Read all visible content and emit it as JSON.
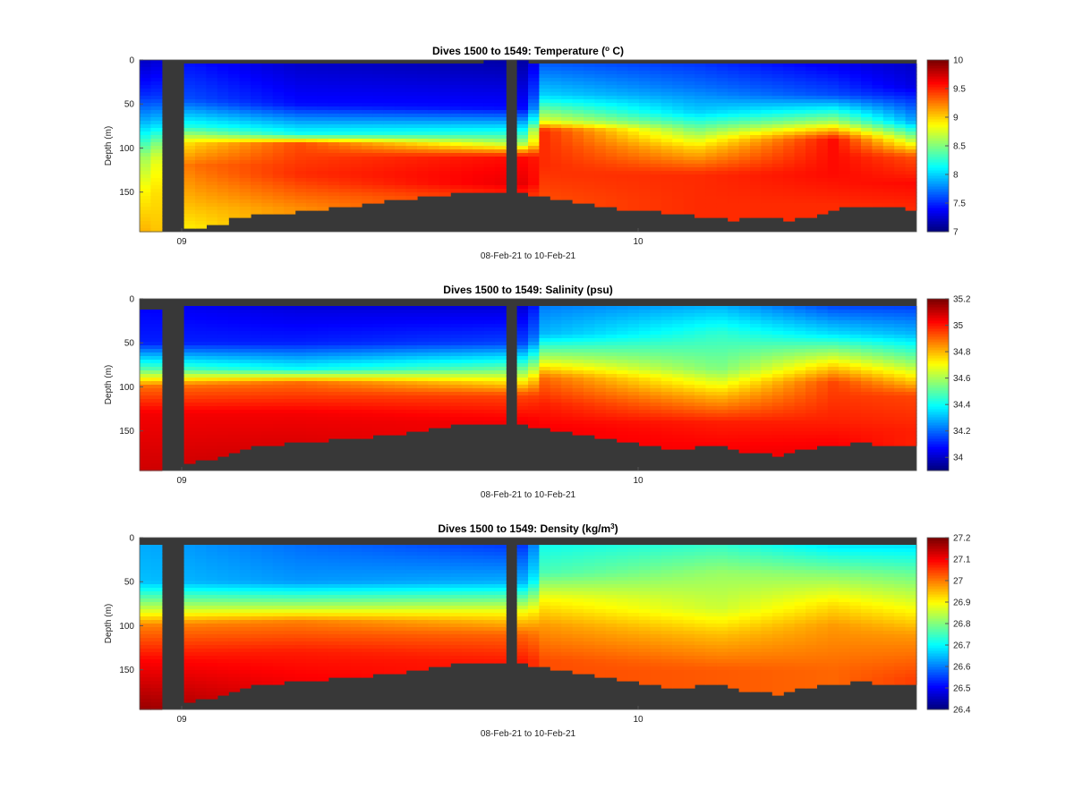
{
  "chart_data": [
    {
      "type": "heatmap",
      "title": "Dives 1500 to 1549: Temperature (",
      "title_sup": "o",
      "title_end": " C)",
      "xlabel": "08-Feb-21 to 10-Feb-21",
      "ylabel": "Depth (m)",
      "x_ticks": [
        "09",
        "10"
      ],
      "y_ticks": [
        0,
        50,
        100,
        150
      ],
      "ylim": [
        0,
        195
      ],
      "colorbar": {
        "min": 7,
        "max": 10,
        "ticks": [
          "7",
          "7.5",
          "8",
          "8.5",
          "9",
          "9.5",
          "10"
        ]
      },
      "bottom_depth": [
        195,
        195,
        0,
        0,
        192,
        190,
        187,
        185,
        180,
        178,
        176,
        175,
        174,
        173,
        171,
        170,
        169,
        168,
        167,
        165,
        163,
        162,
        160,
        158,
        157,
        155,
        154,
        153,
        151,
        150,
        149,
        150,
        152,
        0,
        152,
        154,
        156,
        158,
        160,
        162,
        164,
        166,
        168,
        169,
        170,
        171,
        172,
        173,
        174,
        176,
        177,
        179,
        180,
        181,
        180,
        178,
        179,
        180,
        181,
        180,
        177,
        174,
        171,
        168,
        167,
        166,
        166,
        167,
        168,
        169
      ],
      "surface_depth": [
        2,
        2,
        0,
        0,
        3,
        4,
        3,
        4,
        5,
        5,
        4,
        5,
        3,
        4,
        5,
        4,
        3,
        5,
        4,
        3,
        4,
        5,
        4,
        3,
        5,
        4,
        3,
        4,
        5,
        4,
        3,
        2,
        2,
        0,
        2,
        3,
        4,
        3,
        4,
        3,
        4,
        5,
        3,
        4,
        5,
        3,
        4,
        5,
        3,
        4,
        3,
        5,
        4,
        3,
        4,
        5,
        3,
        4,
        5,
        4,
        3,
        4,
        5,
        3,
        4,
        5,
        4,
        3,
        4,
        5
      ],
      "profiles": [
        {
          "t": 0.0,
          "levels": [
            [
              0,
              7.2
            ],
            [
              40,
              7.5
            ],
            [
              70,
              7.9
            ],
            [
              110,
              8.6
            ],
            [
              150,
              8.9
            ],
            [
              195,
              9.1
            ]
          ]
        },
        {
          "t": 0.06,
          "levels": [
            [
              0,
              7.4
            ],
            [
              45,
              7.6
            ],
            [
              75,
              8.2
            ],
            [
              95,
              9.0
            ],
            [
              120,
              9.3
            ],
            [
              160,
              9.1
            ],
            [
              195,
              8.9
            ]
          ]
        },
        {
          "t": 0.2,
          "levels": [
            [
              0,
              7.2
            ],
            [
              50,
              7.4
            ],
            [
              85,
              8.2
            ],
            [
              95,
              9.4
            ],
            [
              130,
              9.5
            ],
            [
              170,
              9.2
            ]
          ]
        },
        {
          "t": 0.5,
          "levels": [
            [
              0,
              7.1
            ],
            [
              55,
              7.4
            ],
            [
              95,
              8.6
            ],
            [
              110,
              9.6
            ],
            [
              140,
              9.7
            ],
            [
              155,
              9.5
            ]
          ]
        },
        {
          "t": 0.52,
          "levels": [
            [
              0,
              7.6
            ],
            [
              40,
              8.0
            ],
            [
              70,
              8.8
            ],
            [
              80,
              9.5
            ],
            [
              120,
              9.5
            ],
            [
              160,
              9.4
            ]
          ]
        },
        {
          "t": 0.72,
          "levels": [
            [
              0,
              7.5
            ],
            [
              30,
              7.7
            ],
            [
              60,
              8.0
            ],
            [
              100,
              9.0
            ],
            [
              130,
              9.5
            ],
            [
              175,
              9.5
            ]
          ]
        },
        {
          "t": 0.9,
          "levels": [
            [
              0,
              7.3
            ],
            [
              40,
              7.6
            ],
            [
              70,
              8.6
            ],
            [
              90,
              9.6
            ],
            [
              130,
              9.6
            ],
            [
              165,
              9.5
            ]
          ]
        },
        {
          "t": 1.0,
          "levels": [
            [
              0,
              7.2
            ],
            [
              30,
              7.3
            ],
            [
              70,
              7.9
            ],
            [
              110,
              9.4
            ],
            [
              140,
              9.6
            ],
            [
              170,
              9.5
            ]
          ]
        }
      ]
    },
    {
      "type": "heatmap",
      "title": "Dives 1500 to 1549: Salinity (psu)",
      "xlabel": "08-Feb-21 to 10-Feb-21",
      "ylabel": "Depth (m)",
      "x_ticks": [
        "09",
        "10"
      ],
      "y_ticks": [
        0,
        50,
        100,
        150
      ],
      "ylim": [
        0,
        195
      ],
      "colorbar": {
        "min": 33.9,
        "max": 35.2,
        "ticks": [
          "34",
          "34.2",
          "34.4",
          "34.6",
          "34.8",
          "35",
          "35.2"
        ]
      },
      "bottom_depth": [
        195,
        195,
        0,
        0,
        185,
        183,
        181,
        179,
        176,
        170,
        168,
        166,
        165,
        164,
        163,
        162,
        161,
        160,
        159,
        158,
        157,
        156,
        155,
        153,
        151,
        149,
        147,
        145,
        143,
        142,
        141,
        142,
        144,
        0,
        144,
        146,
        148,
        150,
        152,
        154,
        156,
        158,
        160,
        162,
        164,
        166,
        168,
        170,
        172,
        170,
        168,
        166,
        168,
        172,
        174,
        175,
        176,
        178,
        176,
        172,
        170,
        168,
        166,
        165,
        164,
        164,
        165,
        166,
        167,
        168
      ],
      "surface_depth": [
        12,
        12,
        0,
        0,
        10,
        10,
        9,
        9,
        10,
        10,
        9,
        10,
        9,
        10,
        9,
        10,
        9,
        10,
        9,
        10,
        9,
        10,
        9,
        10,
        9,
        8,
        10,
        9,
        10,
        9,
        10,
        9,
        8,
        0,
        9,
        8,
        10,
        9,
        10,
        9,
        10,
        9,
        10,
        9,
        10,
        8,
        9,
        10,
        8,
        9,
        10,
        9,
        8,
        10,
        9,
        10,
        9,
        10,
        9,
        10,
        9,
        10,
        9,
        10,
        9,
        10,
        9,
        10,
        9,
        10
      ],
      "profiles": [
        {
          "t": 0.0,
          "levels": [
            [
              0,
              34.05
            ],
            [
              50,
              34.1
            ],
            [
              80,
              34.5
            ],
            [
              100,
              34.9
            ],
            [
              130,
              35.05
            ],
            [
              195,
              35.1
            ]
          ]
        },
        {
          "t": 0.2,
          "levels": [
            [
              0,
              34.0
            ],
            [
              50,
              34.1
            ],
            [
              80,
              34.4
            ],
            [
              95,
              34.9
            ],
            [
              130,
              35.05
            ],
            [
              180,
              35.1
            ]
          ]
        },
        {
          "t": 0.5,
          "levels": [
            [
              0,
              33.98
            ],
            [
              50,
              34.15
            ],
            [
              85,
              34.6
            ],
            [
              110,
              34.95
            ],
            [
              140,
              35.05
            ]
          ]
        },
        {
          "t": 0.52,
          "levels": [
            [
              0,
              34.2
            ],
            [
              40,
              34.3
            ],
            [
              70,
              34.65
            ],
            [
              90,
              34.9
            ],
            [
              120,
              35.0
            ],
            [
              150,
              35.05
            ]
          ]
        },
        {
          "t": 0.75,
          "levels": [
            [
              0,
              34.25
            ],
            [
              40,
              34.45
            ],
            [
              80,
              34.55
            ],
            [
              110,
              34.8
            ],
            [
              140,
              35.0
            ],
            [
              175,
              35.05
            ]
          ]
        },
        {
          "t": 0.9,
          "levels": [
            [
              0,
              34.1
            ],
            [
              40,
              34.35
            ],
            [
              75,
              34.75
            ],
            [
              95,
              34.95
            ],
            [
              140,
              35.0
            ],
            [
              170,
              35.05
            ]
          ]
        },
        {
          "t": 1.0,
          "levels": [
            [
              0,
              34.1
            ],
            [
              40,
              34.3
            ],
            [
              75,
              34.6
            ],
            [
              110,
              34.95
            ],
            [
              150,
              35.0
            ],
            [
              170,
              35.0
            ]
          ]
        }
      ]
    },
    {
      "type": "heatmap",
      "title": "Dives 1500 to 1549: Density (kg/m",
      "title_sup": "3",
      "title_end": ")",
      "xlabel": "08-Feb-21 to 10-Feb-21",
      "ylabel": "Depth (m)",
      "x_ticks": [
        "09",
        "10"
      ],
      "y_ticks": [
        0,
        50,
        100,
        150
      ],
      "ylim": [
        0,
        195
      ],
      "colorbar": {
        "min": 26.4,
        "max": 27.2,
        "ticks": [
          "26.4",
          "26.5",
          "26.6",
          "26.7",
          "26.8",
          "26.9",
          "27",
          "27.1",
          "27.2"
        ]
      },
      "bottom_depth": [
        195,
        195,
        0,
        0,
        185,
        183,
        181,
        179,
        176,
        170,
        168,
        166,
        165,
        164,
        163,
        162,
        161,
        160,
        159,
        158,
        157,
        156,
        155,
        153,
        151,
        149,
        147,
        145,
        143,
        142,
        141,
        142,
        144,
        0,
        144,
        146,
        148,
        150,
        152,
        154,
        156,
        158,
        160,
        162,
        164,
        166,
        168,
        170,
        172,
        170,
        168,
        166,
        168,
        172,
        174,
        175,
        176,
        178,
        176,
        172,
        170,
        168,
        166,
        165,
        164,
        164,
        165,
        166,
        167,
        168
      ],
      "surface_depth": [
        10,
        10,
        0,
        0,
        10,
        10,
        9,
        9,
        10,
        10,
        9,
        10,
        9,
        10,
        9,
        10,
        9,
        10,
        9,
        10,
        9,
        10,
        9,
        10,
        9,
        8,
        10,
        9,
        10,
        9,
        10,
        9,
        8,
        0,
        9,
        8,
        10,
        9,
        10,
        9,
        10,
        9,
        10,
        9,
        10,
        8,
        9,
        10,
        8,
        9,
        10,
        9,
        8,
        10,
        9,
        10,
        9,
        10,
        9,
        10,
        9,
        10,
        9,
        10,
        9,
        10,
        9,
        10,
        9,
        10
      ],
      "profiles": [
        {
          "t": 0.0,
          "levels": [
            [
              0,
              26.63
            ],
            [
              50,
              26.65
            ],
            [
              80,
              26.85
            ],
            [
              100,
              27.0
            ],
            [
              140,
              27.1
            ],
            [
              195,
              27.18
            ]
          ]
        },
        {
          "t": 0.2,
          "levels": [
            [
              0,
              26.58
            ],
            [
              50,
              26.62
            ],
            [
              80,
              26.85
            ],
            [
              95,
              27.0
            ],
            [
              130,
              27.08
            ],
            [
              180,
              27.12
            ]
          ]
        },
        {
          "t": 0.5,
          "levels": [
            [
              0,
              26.52
            ],
            [
              50,
              26.64
            ],
            [
              85,
              26.9
            ],
            [
              110,
              27.02
            ],
            [
              140,
              27.08
            ]
          ]
        },
        {
          "t": 0.52,
          "levels": [
            [
              0,
              26.7
            ],
            [
              40,
              26.76
            ],
            [
              70,
              26.9
            ],
            [
              100,
              26.98
            ],
            [
              140,
              27.04
            ]
          ]
        },
        {
          "t": 0.75,
          "levels": [
            [
              0,
              26.72
            ],
            [
              40,
              26.82
            ],
            [
              80,
              26.86
            ],
            [
              110,
              26.95
            ],
            [
              150,
              27.03
            ]
          ]
        },
        {
          "t": 0.9,
          "levels": [
            [
              0,
              26.65
            ],
            [
              40,
              26.8
            ],
            [
              75,
              26.92
            ],
            [
              100,
              26.98
            ],
            [
              150,
              27.02
            ]
          ]
        },
        {
          "t": 1.0,
          "levels": [
            [
              0,
              26.65
            ],
            [
              40,
              26.78
            ],
            [
              75,
              26.88
            ],
            [
              110,
              26.98
            ],
            [
              160,
              27.05
            ]
          ]
        }
      ]
    }
  ]
}
